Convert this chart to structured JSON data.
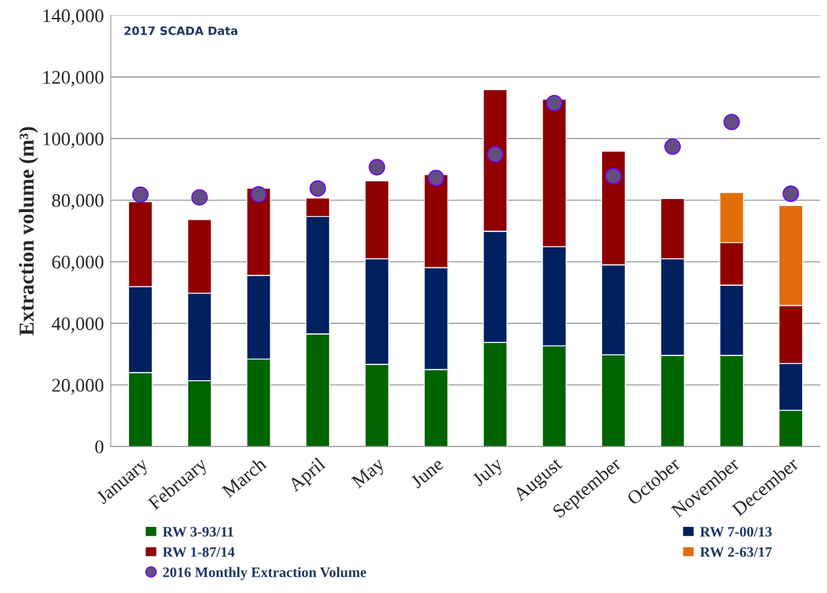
{
  "chart_data": {
    "type": "bar",
    "stacked": true,
    "title": "2017 SCADA Data",
    "ylabel": "Extraction volume (m³)",
    "categories": [
      "January",
      "February",
      "March",
      "April",
      "May",
      "June",
      "July",
      "August",
      "September",
      "October",
      "November",
      "December"
    ],
    "ylim": [
      0,
      140000
    ],
    "yticks": [
      {
        "value": 0,
        "label": "0"
      },
      {
        "value": 20000,
        "label": "20,000"
      },
      {
        "value": 40000,
        "label": "40,000"
      },
      {
        "value": 60000,
        "label": "60,000"
      },
      {
        "value": 80000,
        "label": "80,000"
      },
      {
        "value": 100000,
        "label": "100,000"
      },
      {
        "value": 120000,
        "label": "120,000"
      },
      {
        "value": 140000,
        "label": "140,000"
      }
    ],
    "grid": "y",
    "legend": "bottom",
    "series": [
      {
        "name": "RW 3-93/11",
        "color": "#006400",
        "values": [
          24000,
          21400,
          28400,
          36600,
          26700,
          25000,
          33800,
          32700,
          29800,
          29600,
          29600,
          11800
        ]
      },
      {
        "name": "RW 7-00/13",
        "color": "#00205f",
        "values": [
          27900,
          28400,
          27200,
          38100,
          34300,
          33100,
          36100,
          32200,
          29200,
          31400,
          22800,
          15200
        ]
      },
      {
        "name": "RW 1-87/14",
        "color": "#900000",
        "values": [
          27600,
          23900,
          28300,
          6000,
          25300,
          30200,
          46000,
          47900,
          36900,
          19500,
          13800,
          18800
        ]
      },
      {
        "name": "RW 2-63/17",
        "color": "#e36c0a",
        "values": [
          null,
          null,
          null,
          null,
          null,
          null,
          null,
          null,
          null,
          null,
          16300,
          32500
        ]
      },
      {
        "name": "2016 Monthly Extraction Volume",
        "type": "scatter",
        "marker": "circle",
        "color": "#634f7f",
        "values": [
          81800,
          80900,
          81900,
          83800,
          90700,
          87200,
          94900,
          111500,
          87800,
          97400,
          105400,
          82100
        ]
      }
    ]
  }
}
